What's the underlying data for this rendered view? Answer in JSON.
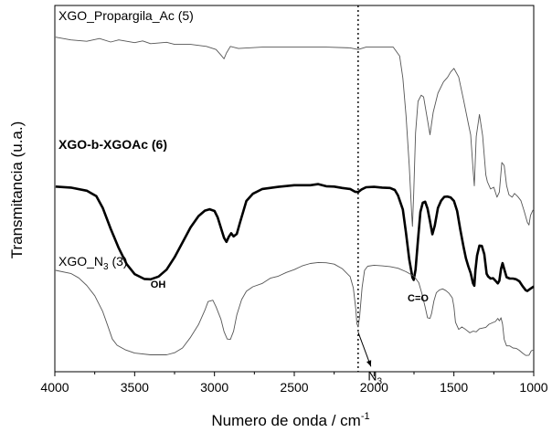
{
  "chart_data": {
    "type": "line",
    "xlabel": "Numero de onda / cm",
    "xlabel_sup": "-1",
    "ylabel": "Transmitancia (u.a.)",
    "xlim": [
      4000,
      1000
    ],
    "x_reversed": true,
    "y_ticks_shown": false,
    "xticks": [
      4000,
      3500,
      3000,
      2500,
      2000,
      1500,
      1000
    ],
    "series": [
      {
        "name": "XGO_Propargila_Ac (5)",
        "color": "#555555",
        "bold": false,
        "points": [
          [
            3995,
            0.929
          ],
          [
            3900,
            0.921
          ],
          [
            3800,
            0.917
          ],
          [
            3720,
            0.925
          ],
          [
            3650,
            0.915
          ],
          [
            3600,
            0.921
          ],
          [
            3500,
            0.913
          ],
          [
            3450,
            0.918
          ],
          [
            3400,
            0.91
          ],
          [
            3300,
            0.914
          ],
          [
            3250,
            0.908
          ],
          [
            3150,
            0.908
          ],
          [
            3050,
            0.902
          ],
          [
            2990,
            0.893
          ],
          [
            2960,
            0.877
          ],
          [
            2940,
            0.866
          ],
          [
            2925,
            0.883
          ],
          [
            2900,
            0.902
          ],
          [
            2850,
            0.896
          ],
          [
            2700,
            0.9
          ],
          [
            2500,
            0.9
          ],
          [
            2300,
            0.9
          ],
          [
            2150,
            0.898
          ],
          [
            2100,
            0.893
          ],
          [
            2050,
            0.9
          ],
          [
            1880,
            0.9
          ],
          [
            1840,
            0.874
          ],
          [
            1820,
            0.81
          ],
          [
            1800,
            0.7
          ],
          [
            1780,
            0.555
          ],
          [
            1765,
            0.418
          ],
          [
            1760,
            0.378
          ],
          [
            1752,
            0.475
          ],
          [
            1740,
            0.65
          ],
          [
            1725,
            0.742
          ],
          [
            1705,
            0.76
          ],
          [
            1690,
            0.755
          ],
          [
            1670,
            0.7
          ],
          [
            1650,
            0.645
          ],
          [
            1630,
            0.71
          ],
          [
            1600,
            0.766
          ],
          [
            1565,
            0.799
          ],
          [
            1540,
            0.812
          ],
          [
            1520,
            0.828
          ],
          [
            1500,
            0.838
          ],
          [
            1470,
            0.813
          ],
          [
            1440,
            0.748
          ],
          [
            1410,
            0.678
          ],
          [
            1395,
            0.645
          ],
          [
            1380,
            0.545
          ],
          [
            1372,
            0.496
          ],
          [
            1360,
            0.64
          ],
          [
            1340,
            0.704
          ],
          [
            1320,
            0.642
          ],
          [
            1300,
            0.528
          ],
          [
            1290,
            0.508
          ],
          [
            1270,
            0.487
          ],
          [
            1250,
            0.492
          ],
          [
            1230,
            0.463
          ],
          [
            1215,
            0.478
          ],
          [
            1200,
            0.564
          ],
          [
            1185,
            0.555
          ],
          [
            1170,
            0.497
          ],
          [
            1155,
            0.47
          ],
          [
            1135,
            0.463
          ],
          [
            1120,
            0.474
          ],
          [
            1100,
            0.465
          ],
          [
            1080,
            0.453
          ],
          [
            1060,
            0.423
          ],
          [
            1040,
            0.39
          ],
          [
            1030,
            0.382
          ],
          [
            1020,
            0.41
          ],
          [
            1005,
            0.425
          ],
          [
            1000,
            0.428
          ]
        ]
      },
      {
        "name": "XGO-b-XGOAc (6)",
        "color": "#000000",
        "bold": true,
        "points": [
          [
            3995,
            0.494
          ],
          [
            3900,
            0.491
          ],
          [
            3800,
            0.482
          ],
          [
            3740,
            0.466
          ],
          [
            3700,
            0.432
          ],
          [
            3650,
            0.371
          ],
          [
            3600,
            0.315
          ],
          [
            3550,
            0.268
          ],
          [
            3500,
            0.239
          ],
          [
            3440,
            0.225
          ],
          [
            3400,
            0.224
          ],
          [
            3350,
            0.232
          ],
          [
            3300,
            0.252
          ],
          [
            3250,
            0.288
          ],
          [
            3200,
            0.331
          ],
          [
            3150,
            0.375
          ],
          [
            3100,
            0.408
          ],
          [
            3060,
            0.424
          ],
          [
            3030,
            0.428
          ],
          [
            3000,
            0.423
          ],
          [
            2980,
            0.404
          ],
          [
            2960,
            0.374
          ],
          [
            2940,
            0.345
          ],
          [
            2925,
            0.333
          ],
          [
            2910,
            0.348
          ],
          [
            2895,
            0.358
          ],
          [
            2880,
            0.349
          ],
          [
            2860,
            0.356
          ],
          [
            2840,
            0.389
          ],
          [
            2800,
            0.452
          ],
          [
            2760,
            0.473
          ],
          [
            2700,
            0.487
          ],
          [
            2600,
            0.493
          ],
          [
            2500,
            0.498
          ],
          [
            2400,
            0.498
          ],
          [
            2350,
            0.501
          ],
          [
            2300,
            0.495
          ],
          [
            2250,
            0.494
          ],
          [
            2200,
            0.49
          ],
          [
            2150,
            0.487
          ],
          [
            2120,
            0.479
          ],
          [
            2100,
            0.478
          ],
          [
            2080,
            0.485
          ],
          [
            2050,
            0.492
          ],
          [
            2000,
            0.493
          ],
          [
            1950,
            0.491
          ],
          [
            1900,
            0.49
          ],
          [
            1870,
            0.484
          ],
          [
            1850,
            0.468
          ],
          [
            1820,
            0.427
          ],
          [
            1800,
            0.358
          ],
          [
            1780,
            0.282
          ],
          [
            1760,
            0.229
          ],
          [
            1752,
            0.222
          ],
          [
            1740,
            0.252
          ],
          [
            1725,
            0.34
          ],
          [
            1710,
            0.42
          ],
          [
            1695,
            0.447
          ],
          [
            1680,
            0.45
          ],
          [
            1665,
            0.43
          ],
          [
            1650,
            0.393
          ],
          [
            1635,
            0.355
          ],
          [
            1620,
            0.38
          ],
          [
            1600,
            0.432
          ],
          [
            1580,
            0.453
          ],
          [
            1560,
            0.464
          ],
          [
            1540,
            0.465
          ],
          [
            1520,
            0.462
          ],
          [
            1500,
            0.452
          ],
          [
            1480,
            0.423
          ],
          [
            1460,
            0.368
          ],
          [
            1440,
            0.32
          ],
          [
            1425,
            0.285
          ],
          [
            1410,
            0.262
          ],
          [
            1395,
            0.242
          ],
          [
            1380,
            0.212
          ],
          [
            1372,
            0.205
          ],
          [
            1365,
            0.25
          ],
          [
            1355,
            0.293
          ],
          [
            1340,
            0.322
          ],
          [
            1325,
            0.321
          ],
          [
            1310,
            0.297
          ],
          [
            1295,
            0.24
          ],
          [
            1285,
            0.232
          ],
          [
            1270,
            0.226
          ],
          [
            1255,
            0.227
          ],
          [
            1240,
            0.22
          ],
          [
            1225,
            0.212
          ],
          [
            1215,
            0.22
          ],
          [
            1205,
            0.254
          ],
          [
            1195,
            0.271
          ],
          [
            1185,
            0.254
          ],
          [
            1170,
            0.23
          ],
          [
            1150,
            0.226
          ],
          [
            1130,
            0.226
          ],
          [
            1110,
            0.224
          ],
          [
            1090,
            0.218
          ],
          [
            1070,
            0.204
          ],
          [
            1050,
            0.192
          ],
          [
            1040,
            0.19
          ],
          [
            1025,
            0.195
          ],
          [
            1010,
            0.2
          ],
          [
            1000,
            0.203
          ]
        ]
      },
      {
        "name": "XGO_N3 (3)",
        "color": "#555555",
        "bold": false,
        "points": [
          [
            3995,
            0.25
          ],
          [
            3900,
            0.241
          ],
          [
            3850,
            0.228
          ],
          [
            3800,
            0.206
          ],
          [
            3750,
            0.176
          ],
          [
            3700,
            0.13
          ],
          [
            3670,
            0.091
          ],
          [
            3640,
            0.05
          ],
          [
            3610,
            0.032
          ],
          [
            3560,
            0.019
          ],
          [
            3500,
            0.009
          ],
          [
            3400,
            0.004
          ],
          [
            3300,
            0.004
          ],
          [
            3250,
            0.01
          ],
          [
            3200,
            0.024
          ],
          [
            3150,
            0.055
          ],
          [
            3100,
            0.092
          ],
          [
            3060,
            0.134
          ],
          [
            3040,
            0.159
          ],
          [
            3010,
            0.163
          ],
          [
            2990,
            0.144
          ],
          [
            2960,
            0.108
          ],
          [
            2940,
            0.072
          ],
          [
            2920,
            0.05
          ],
          [
            2900,
            0.049
          ],
          [
            2880,
            0.073
          ],
          [
            2860,
            0.12
          ],
          [
            2830,
            0.165
          ],
          [
            2800,
            0.189
          ],
          [
            2760,
            0.202
          ],
          [
            2700,
            0.212
          ],
          [
            2650,
            0.227
          ],
          [
            2600,
            0.233
          ],
          [
            2550,
            0.244
          ],
          [
            2500,
            0.252
          ],
          [
            2450,
            0.263
          ],
          [
            2400,
            0.27
          ],
          [
            2350,
            0.273
          ],
          [
            2300,
            0.272
          ],
          [
            2250,
            0.268
          ],
          [
            2200,
            0.255
          ],
          [
            2150,
            0.232
          ],
          [
            2130,
            0.199
          ],
          [
            2115,
            0.14
          ],
          [
            2108,
            0.095
          ],
          [
            2100,
            0.085
          ],
          [
            2090,
            0.118
          ],
          [
            2075,
            0.2
          ],
          [
            2060,
            0.25
          ],
          [
            2040,
            0.262
          ],
          [
            2000,
            0.265
          ],
          [
            1950,
            0.263
          ],
          [
            1900,
            0.261
          ],
          [
            1850,
            0.256
          ],
          [
            1800,
            0.246
          ],
          [
            1750,
            0.233
          ],
          [
            1720,
            0.214
          ],
          [
            1700,
            0.182
          ],
          [
            1680,
            0.143
          ],
          [
            1665,
            0.112
          ],
          [
            1650,
            0.11
          ],
          [
            1640,
            0.124
          ],
          [
            1625,
            0.161
          ],
          [
            1610,
            0.185
          ],
          [
            1590,
            0.193
          ],
          [
            1570,
            0.196
          ],
          [
            1550,
            0.191
          ],
          [
            1530,
            0.183
          ],
          [
            1510,
            0.17
          ],
          [
            1500,
            0.144
          ],
          [
            1490,
            0.099
          ],
          [
            1470,
            0.078
          ],
          [
            1450,
            0.085
          ],
          [
            1430,
            0.079
          ],
          [
            1400,
            0.068
          ],
          [
            1380,
            0.073
          ],
          [
            1360,
            0.071
          ],
          [
            1340,
            0.08
          ],
          [
            1320,
            0.082
          ],
          [
            1300,
            0.084
          ],
          [
            1280,
            0.093
          ],
          [
            1260,
            0.097
          ],
          [
            1240,
            0.101
          ],
          [
            1225,
            0.11
          ],
          [
            1215,
            0.103
          ],
          [
            1205,
            0.112
          ],
          [
            1195,
            0.093
          ],
          [
            1185,
            0.049
          ],
          [
            1170,
            0.03
          ],
          [
            1150,
            0.03
          ],
          [
            1130,
            0.024
          ],
          [
            1110,
            0.023
          ],
          [
            1090,
            0.017
          ],
          [
            1070,
            0.009
          ],
          [
            1050,
            0.002
          ],
          [
            1030,
            0.003
          ],
          [
            1015,
            0.016
          ],
          [
            1000,
            0.018
          ]
        ]
      }
    ],
    "series_labels": [
      {
        "series": 0,
        "text": "XGO_Propargila_Ac (5)",
        "bold": false
      },
      {
        "series": 1,
        "text": "XGO-b-XGOAc (6)",
        "bold": true
      },
      {
        "series": 2,
        "text": "XGO_N",
        "sub": "3",
        "suffix": " (3)",
        "bold": false
      }
    ],
    "annotations": [
      {
        "text": "OH",
        "bold": true,
        "at": [
          3400,
          0.2
        ]
      },
      {
        "text": "C=O",
        "bold": true,
        "at": [
          1790,
          0.16
        ]
      },
      {
        "text": "N",
        "sub": "3",
        "bold": false,
        "at": [
          2040,
          -0.07
        ]
      }
    ],
    "reference_line": {
      "x": 2100,
      "style": "dotted"
    },
    "n3_arrow": {
      "from": [
        2100,
        0.07
      ],
      "to": [
        2020,
        -0.03
      ]
    }
  }
}
